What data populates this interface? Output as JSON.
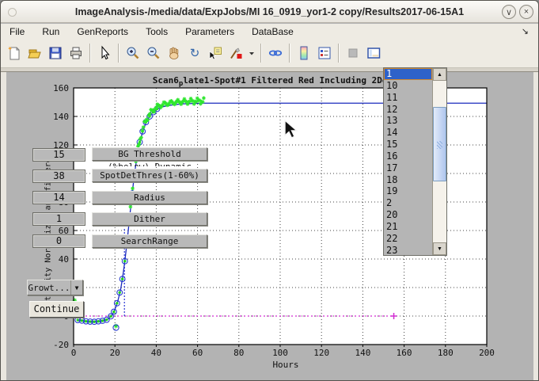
{
  "window": {
    "title": "ImageAnalysis-/media/data/ExpJobs/MI 16_0919_yor1-2 copy/Results2017-06-15A1",
    "minimize_glyph": "∨",
    "close_glyph": "×"
  },
  "menu": {
    "items": [
      "File",
      "Run",
      "GenReports",
      "Tools",
      "Parameters",
      "DataBase"
    ],
    "overflow_glyph": "↘"
  },
  "toolbar": {
    "icons": [
      "new-file",
      "open-folder",
      "save",
      "print",
      "|",
      "cursor-arrow",
      "|",
      "zoom-in",
      "zoom-out",
      "pan-hand",
      "rotate-3d",
      "data-tip",
      "brush",
      "brush-caret",
      "|",
      "link-plots",
      "|",
      "colorbar",
      "legend",
      "|",
      "disabled-square",
      "plot-tools"
    ]
  },
  "controls": {
    "fields": [
      {
        "value": "15",
        "label": "BG Threshold",
        "sub_label": "(%below) Dynamic"
      },
      {
        "value": "38",
        "label": "SpotDetThres(1-60%)",
        "sub_label": ""
      },
      {
        "value": "14",
        "label": "Radius",
        "sub_label": ""
      },
      {
        "value": "1",
        "label": "Dither",
        "sub_label": ""
      },
      {
        "value": "0",
        "label": "SearchRange",
        "sub_label": ""
      }
    ],
    "dropdown_label": "Growt...",
    "dropdown_arrow": "▼",
    "continue_label": "Continue"
  },
  "listbox": {
    "items": [
      "1",
      "10",
      "11",
      "12",
      "13",
      "14",
      "15",
      "16",
      "17",
      "18",
      "19",
      "2",
      "20",
      "21",
      "22",
      "23"
    ],
    "selected": "1",
    "up_glyph": "▲",
    "down_glyph": "▼"
  },
  "chart_data": {
    "type": "line",
    "title_parts": {
      "prefix": "Scan6",
      "subscript": "p",
      "rest": "late1-Spot#1 Filtered Red Including 2Deriv Bl"
    },
    "xlabel": "Hours",
    "ylabel": "Intensity Normalized and filtered",
    "xlim": [
      0,
      200
    ],
    "ylim": [
      -20,
      160
    ],
    "xticks": [
      0,
      20,
      40,
      60,
      80,
      100,
      120,
      140,
      160,
      180,
      200
    ],
    "yticks": [
      -20,
      0,
      20,
      40,
      60,
      80,
      100,
      120,
      140,
      160
    ],
    "grid": true,
    "series": [
      {
        "name": "fit-curve",
        "color": "#1b2bbf",
        "points": [
          [
            1.5,
            -2.5
          ],
          [
            4,
            -3.2
          ],
          [
            7,
            -3.8
          ],
          [
            10,
            -4
          ],
          [
            13,
            -3.6
          ],
          [
            15,
            -3
          ],
          [
            17,
            -1.8
          ],
          [
            18.5,
            0.5
          ],
          [
            19.5,
            3
          ],
          [
            20.5,
            6.5
          ],
          [
            21.3,
            10
          ],
          [
            22,
            14
          ],
          [
            22.8,
            19
          ],
          [
            23.5,
            25
          ],
          [
            24.2,
            32
          ],
          [
            25,
            41
          ],
          [
            25.8,
            51
          ],
          [
            26.6,
            62
          ],
          [
            27.4,
            73
          ],
          [
            28.2,
            84
          ],
          [
            29,
            94
          ],
          [
            29.8,
            103
          ],
          [
            30.6,
            111
          ],
          [
            31.5,
            118
          ],
          [
            32.5,
            124.5
          ],
          [
            33.6,
            130
          ],
          [
            35,
            135.5
          ],
          [
            36.5,
            139.5
          ],
          [
            38,
            142.3
          ],
          [
            40,
            144.8
          ],
          [
            42.5,
            146.5
          ],
          [
            45.5,
            147.6
          ],
          [
            49,
            148.3
          ],
          [
            53,
            148.8
          ],
          [
            58,
            149.1
          ],
          [
            63,
            149.3
          ],
          [
            200,
            149.3
          ]
        ]
      },
      {
        "name": "data-rings",
        "color": "#2b3fd0",
        "marker": "circle",
        "points": [
          [
            2,
            -2.8
          ],
          [
            4,
            -3.2
          ],
          [
            6,
            -3.7
          ],
          [
            8,
            -3.9
          ],
          [
            10,
            -4
          ],
          [
            12,
            -3.7
          ],
          [
            14,
            -3.3
          ],
          [
            16,
            -2.6
          ],
          [
            18,
            -0.2
          ],
          [
            19.5,
            3
          ],
          [
            21,
            9
          ],
          [
            22.3,
            16.5
          ],
          [
            23.6,
            26
          ],
          [
            24.8,
            38.5
          ],
          [
            26,
            54
          ],
          [
            27.2,
            70
          ],
          [
            28.4,
            86
          ],
          [
            29.6,
            101
          ],
          [
            30.8,
            112
          ],
          [
            32,
            122
          ],
          [
            33.4,
            129.5
          ],
          [
            35,
            136
          ],
          [
            36.8,
            140
          ],
          [
            38.6,
            143
          ],
          [
            40.4,
            145.3
          ]
        ]
      },
      {
        "name": "raw-cluster",
        "color": "#2ee62e",
        "marker": "asterisk",
        "h_start": 27,
        "h_end": 63,
        "offset": 1.6,
        "count": 70
      },
      {
        "name": "outlier",
        "color": "#2ee62e",
        "marker": "asterisk-ring",
        "points": [
          [
            20.5,
            -7
          ]
        ]
      },
      {
        "name": "stray-point",
        "color": "#2ee62e",
        "marker": "asterisk",
        "points": [
          [
            0.5,
            11
          ]
        ]
      }
    ],
    "annotations": {
      "threshold_vline": {
        "x": 24.6,
        "y_from": 0,
        "y_to": 62,
        "color": "#2a35d4"
      },
      "baseline": {
        "y": 0,
        "x_from": 0,
        "x_to": 155,
        "color": "#d22bd2"
      }
    }
  }
}
